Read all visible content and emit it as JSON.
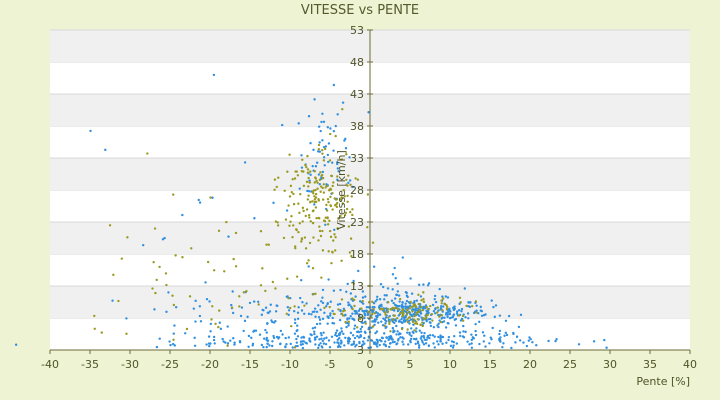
{
  "chart_data": {
    "type": "scatter",
    "title": "VITESSE vs PENTE",
    "xlabel": "Pente [%]",
    "ylabel": "Vitesse [km/h]",
    "xlim": [
      -40,
      40
    ],
    "ylim": [
      3,
      53
    ],
    "x_ticks": [
      "-40",
      "-35",
      "-30",
      "-25",
      "-20",
      "-15",
      "-10",
      "-5",
      "0",
      "5",
      "10",
      "15",
      "20",
      "25",
      "30",
      "35",
      "40"
    ],
    "y_ticks": [
      "53",
      "48",
      "43",
      "38",
      "33",
      "28",
      "23",
      "18",
      "13",
      "8",
      "3"
    ],
    "grid": "horizontal bands",
    "series": [
      {
        "color": "#2f8fe0",
        "clusters": [
          {
            "cx": 5,
            "cy": 8.8,
            "sx": 5,
            "sy": 1.1,
            "n": 320
          },
          {
            "cx": 0,
            "cy": 4.5,
            "sx": 11,
            "sy": 0.8,
            "n": 300
          },
          {
            "cx": -6,
            "cy": 8,
            "sx": 10,
            "sy": 2.5,
            "n": 220
          },
          {
            "cx": -6,
            "cy": 33,
            "sx": 1.8,
            "sy": 5,
            "n": 70
          },
          {
            "cx": 1.5,
            "cy": 11,
            "sx": 3.5,
            "sy": 3,
            "n": 50
          },
          {
            "cx": -20,
            "cy": 25,
            "sx": 8,
            "sy": 8,
            "n": 20
          }
        ]
      },
      {
        "color": "#9a9a22",
        "clusters": [
          {
            "cx": -6.5,
            "cy": 26,
            "sx": 2.5,
            "sy": 4.5,
            "n": 200
          },
          {
            "cx": 5,
            "cy": 9,
            "sx": 4,
            "sy": 1.2,
            "n": 130
          },
          {
            "cx": -15,
            "cy": 12,
            "sx": 8,
            "sy": 4,
            "n": 60
          },
          {
            "cx": -25,
            "cy": 18,
            "sx": 6,
            "sy": 6,
            "n": 20
          }
        ]
      }
    ]
  }
}
